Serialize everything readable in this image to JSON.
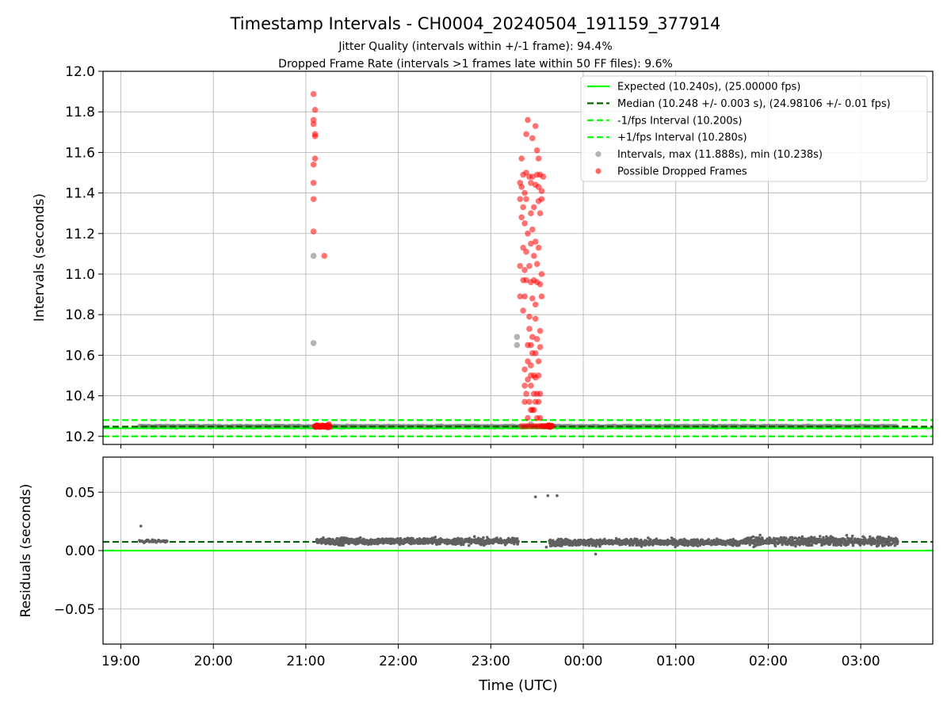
{
  "header": {
    "title": "Timestamp Intervals - CH0004_20240504_191159_377914",
    "subtitle1": "Jitter Quality (intervals within +/-1 frame): 94.4%",
    "subtitle2": "Dropped Frame Rate (intervals >1 frames late within 50 FF files): 9.6%"
  },
  "chart_data": [
    {
      "type": "scatter",
      "ylabel": "Intervals (seconds)",
      "ylim": [
        10.16,
        12.0
      ],
      "yticks": [
        "10.2",
        "10.4",
        "10.6",
        "10.8",
        "11.0",
        "11.2",
        "11.4",
        "11.6",
        "11.8",
        "12.0"
      ],
      "ytick_values": [
        10.2,
        10.4,
        10.6,
        10.8,
        11.0,
        11.2,
        11.4,
        11.6,
        11.8,
        12.0
      ],
      "x_range": [
        "18:49",
        "03:49"
      ],
      "grid": true,
      "legend_position": "top-right",
      "lines": [
        {
          "name": "Expected (10.240s), (25.00000 fps)",
          "y": 10.24,
          "color": "#00ff00",
          "style": "solid"
        },
        {
          "name": "Median (10.248 +/- 0.003 s), (24.98106 +/- 0.01 fps)",
          "y": 10.248,
          "color": "#006400",
          "style": "dashed"
        },
        {
          "name": "-1/fps Interval (10.200s)",
          "y": 10.2,
          "color": "#00ff00",
          "style": "dashed"
        },
        {
          "name": "+1/fps Interval (10.280s)",
          "y": 10.28,
          "color": "#00ff00",
          "style": "dashed"
        }
      ],
      "series": [
        {
          "name": "Intervals, max (11.888s), min (10.238s)",
          "color": "#808080",
          "baseline_value": 10.248,
          "baseline_range": [
            "19:12",
            "03:24"
          ],
          "points": [
            {
              "t": "21:05",
              "v": 11.09
            },
            {
              "t": "21:05",
              "v": 10.66
            },
            {
              "t": "23:17",
              "v": 10.69
            },
            {
              "t": "23:17",
              "v": 10.65
            },
            {
              "t": "23:26",
              "v": 10.26
            }
          ]
        },
        {
          "name": "Possible Dropped Frames",
          "color": "#ff0000",
          "points": [
            {
              "t": "21:05",
              "v": 11.888
            },
            {
              "t": "21:06",
              "v": 11.81
            },
            {
              "t": "21:05",
              "v": 11.76
            },
            {
              "t": "21:05",
              "v": 11.74
            },
            {
              "t": "21:06",
              "v": 11.69
            },
            {
              "t": "21:06",
              "v": 11.68
            },
            {
              "t": "21:06",
              "v": 11.57
            },
            {
              "t": "21:05",
              "v": 11.54
            },
            {
              "t": "21:05",
              "v": 11.45
            },
            {
              "t": "21:05",
              "v": 11.37
            },
            {
              "t": "21:05",
              "v": 11.21
            },
            {
              "t": "21:12",
              "v": 11.09
            },
            {
              "t": "21:06",
              "v": 10.25
            },
            {
              "t": "21:08",
              "v": 10.25
            },
            {
              "t": "21:10",
              "v": 10.25
            },
            {
              "t": "21:12",
              "v": 10.25
            },
            {
              "t": "21:14",
              "v": 10.25
            },
            {
              "t": "21:15",
              "v": 10.26
            },
            {
              "t": "23:24",
              "v": 11.76
            },
            {
              "t": "23:29",
              "v": 11.73
            },
            {
              "t": "23:23",
              "v": 11.69
            },
            {
              "t": "23:20",
              "v": 11.57
            },
            {
              "t": "23:27",
              "v": 11.67
            },
            {
              "t": "23:31",
              "v": 11.57
            },
            {
              "t": "23:30",
              "v": 11.61
            },
            {
              "t": "23:21",
              "v": 11.49
            },
            {
              "t": "23:23",
              "v": 11.5
            },
            {
              "t": "23:25",
              "v": 11.48
            },
            {
              "t": "23:27",
              "v": 11.48
            },
            {
              "t": "23:30",
              "v": 11.49
            },
            {
              "t": "23:32",
              "v": 11.49
            },
            {
              "t": "23:34",
              "v": 11.48
            },
            {
              "t": "23:19",
              "v": 11.45
            },
            {
              "t": "23:20",
              "v": 11.43
            },
            {
              "t": "23:22",
              "v": 11.4
            },
            {
              "t": "23:26",
              "v": 11.45
            },
            {
              "t": "23:29",
              "v": 11.44
            },
            {
              "t": "23:31",
              "v": 11.43
            },
            {
              "t": "23:33",
              "v": 11.41
            },
            {
              "t": "23:19",
              "v": 11.37
            },
            {
              "t": "23:21",
              "v": 11.33
            },
            {
              "t": "23:23",
              "v": 11.37
            },
            {
              "t": "23:26",
              "v": 11.3
            },
            {
              "t": "23:28",
              "v": 11.33
            },
            {
              "t": "23:31",
              "v": 11.36
            },
            {
              "t": "23:33",
              "v": 11.37
            },
            {
              "t": "23:20",
              "v": 11.28
            },
            {
              "t": "23:22",
              "v": 11.25
            },
            {
              "t": "23:24",
              "v": 11.2
            },
            {
              "t": "23:27",
              "v": 11.22
            },
            {
              "t": "23:29",
              "v": 11.16
            },
            {
              "t": "23:32",
              "v": 11.3
            },
            {
              "t": "23:21",
              "v": 11.13
            },
            {
              "t": "23:23",
              "v": 11.11
            },
            {
              "t": "23:26",
              "v": 11.15
            },
            {
              "t": "23:28",
              "v": 11.09
            },
            {
              "t": "23:31",
              "v": 11.13
            },
            {
              "t": "23:19",
              "v": 11.04
            },
            {
              "t": "23:22",
              "v": 11.02
            },
            {
              "t": "23:25",
              "v": 11.04
            },
            {
              "t": "23:30",
              "v": 11.05
            },
            {
              "t": "23:33",
              "v": 11.0
            },
            {
              "t": "23:21",
              "v": 10.97
            },
            {
              "t": "23:23",
              "v": 10.97
            },
            {
              "t": "23:26",
              "v": 10.96
            },
            {
              "t": "23:28",
              "v": 10.97
            },
            {
              "t": "23:30",
              "v": 10.96
            },
            {
              "t": "23:32",
              "v": 10.95
            },
            {
              "t": "23:19",
              "v": 10.89
            },
            {
              "t": "23:22",
              "v": 10.89
            },
            {
              "t": "23:27",
              "v": 10.88
            },
            {
              "t": "23:29",
              "v": 10.85
            },
            {
              "t": "23:33",
              "v": 10.89
            },
            {
              "t": "23:21",
              "v": 10.82
            },
            {
              "t": "23:25",
              "v": 10.79
            },
            {
              "t": "23:29",
              "v": 10.78
            },
            {
              "t": "23:25",
              "v": 10.73
            },
            {
              "t": "23:27",
              "v": 10.69
            },
            {
              "t": "23:30",
              "v": 10.68
            },
            {
              "t": "23:32",
              "v": 10.72
            },
            {
              "t": "23:24",
              "v": 10.65
            },
            {
              "t": "23:26",
              "v": 10.65
            },
            {
              "t": "23:27",
              "v": 10.61
            },
            {
              "t": "23:29",
              "v": 10.61
            },
            {
              "t": "23:32",
              "v": 10.64
            },
            {
              "t": "23:22",
              "v": 10.53
            },
            {
              "t": "23:24",
              "v": 10.57
            },
            {
              "t": "23:26",
              "v": 10.55
            },
            {
              "t": "23:28",
              "v": 10.5
            },
            {
              "t": "23:31",
              "v": 10.57
            },
            {
              "t": "23:22",
              "v": 10.45
            },
            {
              "t": "23:24",
              "v": 10.48
            },
            {
              "t": "23:26",
              "v": 10.5
            },
            {
              "t": "23:29",
              "v": 10.49
            },
            {
              "t": "23:31",
              "v": 10.5
            },
            {
              "t": "23:23",
              "v": 10.41
            },
            {
              "t": "23:26",
              "v": 10.45
            },
            {
              "t": "23:28",
              "v": 10.41
            },
            {
              "t": "23:30",
              "v": 10.41
            },
            {
              "t": "23:32",
              "v": 10.41
            },
            {
              "t": "23:22",
              "v": 10.37
            },
            {
              "t": "23:25",
              "v": 10.37
            },
            {
              "t": "23:27",
              "v": 10.33
            },
            {
              "t": "23:29",
              "v": 10.37
            },
            {
              "t": "23:31",
              "v": 10.37
            },
            {
              "t": "23:24",
              "v": 10.29
            },
            {
              "t": "23:26",
              "v": 10.33
            },
            {
              "t": "23:28",
              "v": 10.33
            },
            {
              "t": "23:30",
              "v": 10.29
            },
            {
              "t": "23:32",
              "v": 10.29
            },
            {
              "t": "23:20",
              "v": 10.25
            },
            {
              "t": "23:22",
              "v": 10.25
            },
            {
              "t": "23:24",
              "v": 10.25
            },
            {
              "t": "23:26",
              "v": 10.25
            },
            {
              "t": "23:28",
              "v": 10.25
            },
            {
              "t": "23:30",
              "v": 10.25
            },
            {
              "t": "23:32",
              "v": 10.25
            },
            {
              "t": "23:33",
              "v": 10.25
            },
            {
              "t": "23:34",
              "v": 10.25
            },
            {
              "t": "23:35",
              "v": 10.25
            },
            {
              "t": "23:36",
              "v": 10.25
            },
            {
              "t": "23:37",
              "v": 10.25
            },
            {
              "t": "23:38",
              "v": 10.25
            },
            {
              "t": "23:39",
              "v": 10.25
            }
          ]
        }
      ]
    },
    {
      "type": "scatter",
      "ylabel": "Residuals (seconds)",
      "xlabel": "Time (UTC)",
      "ylim": [
        -0.08,
        0.08
      ],
      "yticks": [
        "−0.05",
        "0.00",
        "0.05"
      ],
      "ytick_values": [
        -0.05,
        0.0,
        0.05
      ],
      "xticks": [
        "19:00",
        "20:00",
        "21:00",
        "22:00",
        "23:00",
        "00:00",
        "01:00",
        "02:00",
        "03:00"
      ],
      "grid": true,
      "lines": [
        {
          "y": 0.0,
          "color": "#00ff00",
          "style": "solid"
        },
        {
          "y": 0.0075,
          "color": "#006400",
          "style": "dashed"
        }
      ],
      "series": [
        {
          "color": "#606060",
          "segments": [
            {
              "from": "19:12",
              "to": "19:30",
              "center": 0.008,
              "spread": 0.002
            },
            {
              "from": "21:07",
              "to": "23:18",
              "center": 0.008,
              "spread": 0.005
            },
            {
              "from": "23:38",
              "to": "01:45",
              "center": 0.007,
              "spread": 0.005
            },
            {
              "from": "01:45",
              "to": "03:24",
              "center": 0.008,
              "spread": 0.007
            }
          ],
          "outliers": [
            {
              "t": "19:13",
              "v": 0.021
            },
            {
              "t": "23:29",
              "v": 0.046
            },
            {
              "t": "23:37",
              "v": 0.047
            },
            {
              "t": "23:43",
              "v": 0.047
            },
            {
              "t": "00:08",
              "v": -0.003
            },
            {
              "t": "23:36",
              "v": 0.003
            }
          ]
        }
      ]
    }
  ]
}
